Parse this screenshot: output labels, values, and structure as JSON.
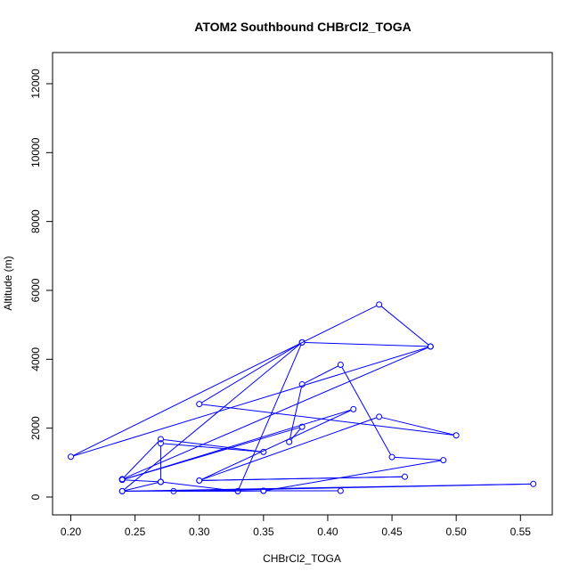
{
  "chart_data": {
    "type": "line",
    "title": "ATOM2 Southbound CHBrCl2_TOGA",
    "xlabel": "CHBrCl2_TOGA",
    "ylabel": "Altitude (m)",
    "xlim": [
      0.2,
      0.56
    ],
    "ylim": [
      0,
      12400
    ],
    "xticks": [
      0.2,
      0.25,
      0.3,
      0.35,
      0.4,
      0.45,
      0.5,
      0.55
    ],
    "xtick_labels": [
      "0.20",
      "0.25",
      "0.30",
      "0.35",
      "0.40",
      "0.45",
      "0.50",
      "0.55"
    ],
    "yticks": [
      0,
      2000,
      4000,
      6000,
      8000,
      10000,
      12000
    ],
    "ytick_labels": [
      "0",
      "2000",
      "4000",
      "6000",
      "8000",
      "10000",
      "12000"
    ],
    "grid": false,
    "markers": "open-circle",
    "colors": {
      "series": "#0000ff",
      "axis": "#000000"
    },
    "series": [
      {
        "x": [
          0.41,
          0.35,
          0.24,
          0.56,
          0.28,
          0.33,
          0.27,
          0.27,
          0.35,
          0.27,
          0.24,
          0.48,
          0.2,
          0.44,
          0.48,
          0.38,
          0.3,
          0.5,
          0.44,
          0.3,
          0.46,
          0.3,
          0.42,
          0.24,
          0.38,
          0.37,
          0.38,
          0.41,
          0.45,
          0.49,
          0.35,
          0.33,
          0.38,
          0.24,
          0.27,
          0.24
        ],
        "y": [
          180,
          180,
          170,
          380,
          170,
          170,
          440,
          1560,
          1310,
          1680,
          520,
          4370,
          1170,
          5590,
          4370,
          4490,
          2700,
          1790,
          2330,
          480,
          590,
          480,
          2550,
          500,
          2040,
          1600,
          3270,
          3840,
          1160,
          1070,
          180,
          170,
          4490,
          170,
          440,
          500
        ]
      }
    ]
  }
}
